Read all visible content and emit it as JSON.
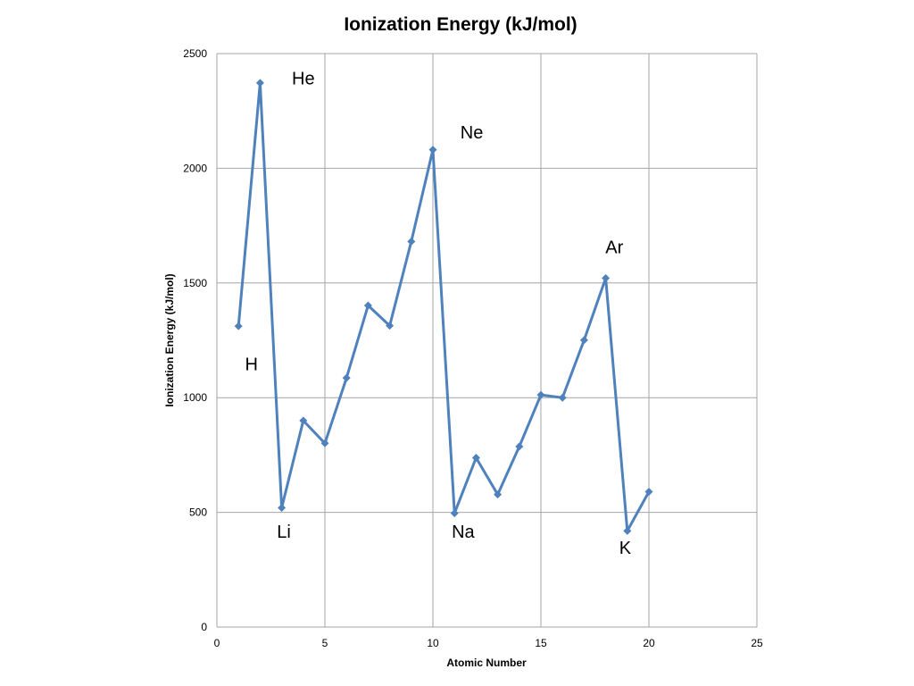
{
  "chart_data": {
    "type": "line",
    "title": "Ionization Energy (kJ/mol)",
    "xlabel": "Atomic Number",
    "ylabel": "Ionization Energy (kJ/mol)",
    "xlim": [
      0,
      25
    ],
    "ylim": [
      0,
      2500
    ],
    "x_ticks": [
      0,
      5,
      10,
      15,
      20,
      25
    ],
    "y_ticks": [
      0,
      500,
      1000,
      1500,
      2000,
      2500
    ],
    "grid": true,
    "line_color": "#4F81BD",
    "grid_color": "#A6A6A6",
    "series": [
      {
        "x": [
          1,
          2,
          3,
          4,
          5,
          6,
          7,
          8,
          9,
          10,
          11,
          12,
          13,
          14,
          15,
          16,
          17,
          18,
          19,
          20
        ],
        "y": [
          1312,
          2372,
          520,
          900,
          801,
          1086,
          1402,
          1314,
          1681,
          2081,
          496,
          738,
          578,
          787,
          1012,
          1000,
          1251,
          1521,
          419,
          590
        ]
      }
    ],
    "annotations": [
      {
        "text": "He",
        "x": 4.0,
        "y": 2365
      },
      {
        "text": "Ne",
        "x": 11.8,
        "y": 2130
      },
      {
        "text": "Ar",
        "x": 18.4,
        "y": 1630
      },
      {
        "text": "H",
        "x": 1.6,
        "y": 1120
      },
      {
        "text": "Li",
        "x": 3.1,
        "y": 390
      },
      {
        "text": "Na",
        "x": 11.4,
        "y": 390
      },
      {
        "text": "K",
        "x": 18.9,
        "y": 320
      }
    ]
  }
}
